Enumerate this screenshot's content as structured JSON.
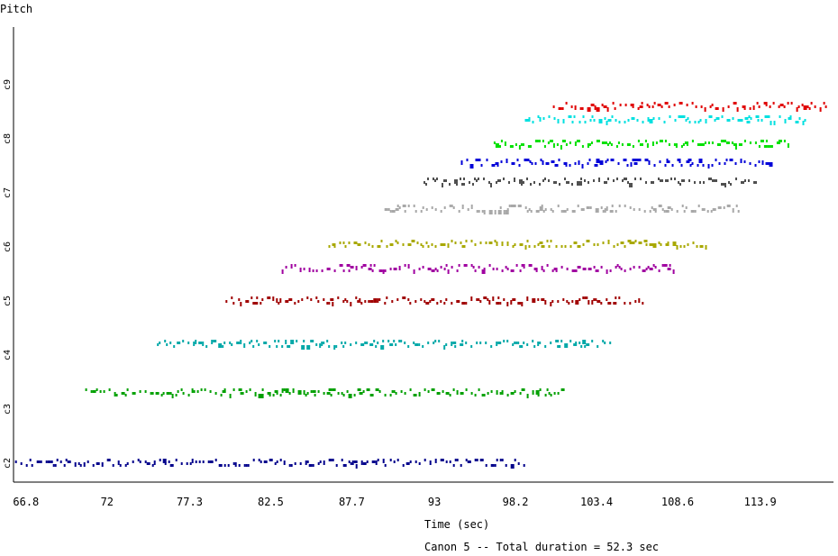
{
  "chart_data": {
    "type": "scatter",
    "title": "",
    "ylabel": "Pitch",
    "xlabel": "Time (sec)",
    "caption": "Canon 5 -- Total duration = 52.3 sec",
    "xlim": [
      66.0,
      118.6
    ],
    "x_ticks": [
      "66.8",
      "72",
      "77.3",
      "82.5",
      "87.7",
      "93",
      "98.2",
      "103.4",
      "108.6",
      "113.9"
    ],
    "y_ticks": [
      "c2",
      "c3",
      "c4",
      "c5",
      "c6",
      "c7",
      "c8",
      "c9"
    ],
    "ylim": [
      2.0,
      9.7
    ],
    "grid": false,
    "legend": "none",
    "voices": [
      {
        "start": 66.1,
        "end": 98.9,
        "center": 2.0,
        "color": "#00008b"
      },
      {
        "start": 70.6,
        "end": 101.4,
        "center": 3.3,
        "color": "#00a000"
      },
      {
        "start": 75.2,
        "end": 104.4,
        "center": 4.2,
        "color": "#00a8a8"
      },
      {
        "start": 79.6,
        "end": 106.4,
        "center": 5.0,
        "color": "#a00000"
      },
      {
        "start": 83.2,
        "end": 108.4,
        "center": 5.6,
        "color": "#a000a0"
      },
      {
        "start": 86.2,
        "end": 110.6,
        "center": 6.05,
        "color": "#a8a800"
      },
      {
        "start": 89.8,
        "end": 112.6,
        "center": 6.7,
        "color": "#a8a8a8"
      },
      {
        "start": 92.3,
        "end": 113.6,
        "center": 7.2,
        "color": "#505050"
      },
      {
        "start": 94.7,
        "end": 114.6,
        "center": 7.55,
        "color": "#0000d8"
      },
      {
        "start": 96.8,
        "end": 115.8,
        "center": 7.9,
        "color": "#00e000"
      },
      {
        "start": 98.8,
        "end": 116.8,
        "center": 8.35,
        "color": "#00e0e0"
      },
      {
        "start": 100.6,
        "end": 118.2,
        "center": 8.6,
        "color": "#e00000"
      }
    ]
  }
}
